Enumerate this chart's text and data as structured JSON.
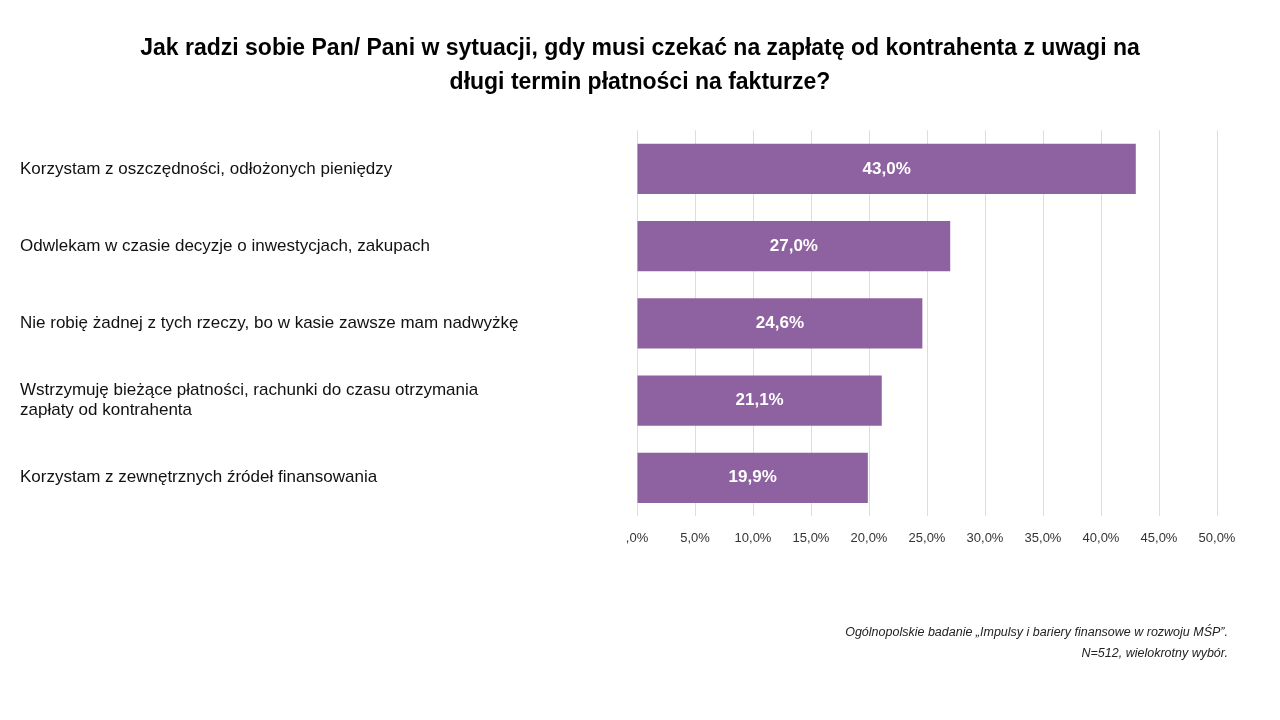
{
  "chart_data": {
    "type": "bar",
    "orientation": "horizontal",
    "title": "Jak radzi sobie Pan/ Pani w sytuacji, gdy musi czekać na zapłatę od kontrahenta z uwagi na długi termin płatności na fakturze?",
    "categories": [
      "Korzystam z oszczędności, odłożonych pieniędzy",
      "Odwlekam w czasie decyzje o inwestycjach, zakupach",
      "Nie robię żadnej z tych rzeczy, bo w kasie zawsze mam nadwyżkę",
      "Wstrzymuję bieżące płatności, rachunki do czasu otrzymania zapłaty od kontrahenta",
      "Korzystam z zewnętrznych źródeł finansowania"
    ],
    "values": [
      43.0,
      27.0,
      24.6,
      21.1,
      19.9
    ],
    "value_labels": [
      "43,0%",
      "27,0%",
      "24,6%",
      "21,1%",
      "19,9%"
    ],
    "color": "#8e62a0",
    "xlim": [
      0,
      50
    ],
    "xticks": [
      {
        "value": 0,
        "label": ",0%"
      },
      {
        "value": 5,
        "label": "5,0%"
      },
      {
        "value": 10,
        "label": "10,0%"
      },
      {
        "value": 15,
        "label": "15,0%"
      },
      {
        "value": 20,
        "label": "20,0%"
      },
      {
        "value": 25,
        "label": "25,0%"
      },
      {
        "value": 30,
        "label": "30,0%"
      },
      {
        "value": 35,
        "label": "35,0%"
      },
      {
        "value": 40,
        "label": "40,0%"
      },
      {
        "value": 45,
        "label": "45,0%"
      },
      {
        "value": 50,
        "label": "50,0%"
      }
    ],
    "grid": "x",
    "legend": false,
    "annotations": [
      "Ogólnopolskie badanie „Impulsy i bariery finansowe w rozwoju MŚP”.",
      "N=512, wielokrotny wybór."
    ]
  }
}
